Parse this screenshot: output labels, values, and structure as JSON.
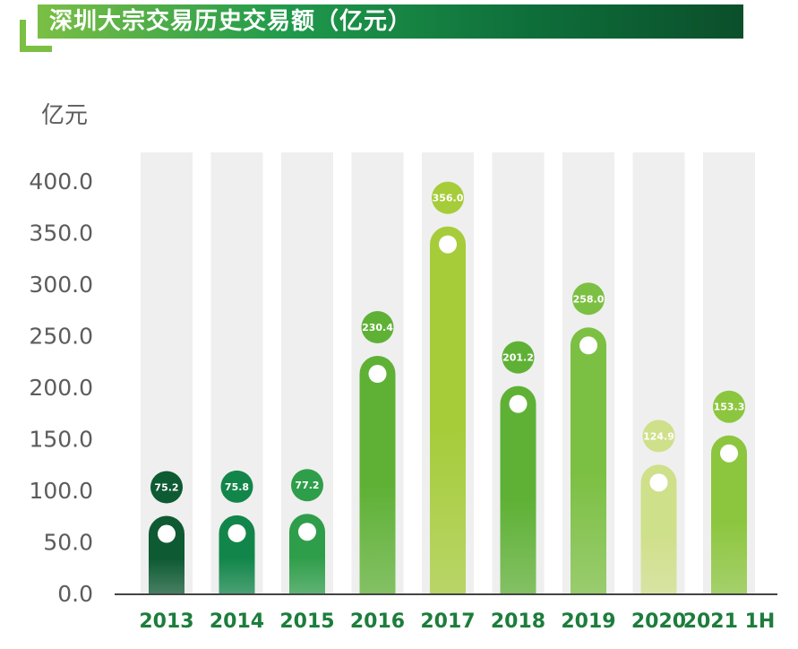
{
  "colors": {
    "title_gradient": [
      "#7bbf45",
      "#1f9a4b",
      "#0e6e3a",
      "#0b4f2b"
    ],
    "accent": "#7cc043",
    "axis_label": "#5c5c5c",
    "x_label": "#1d7d3c",
    "track": "#efefef",
    "bar_colors": [
      "#0e5a33",
      "#12864a",
      "#2f9e4a",
      "#5fb136",
      "#a6cc3a",
      "#5fb136",
      "#7cc043",
      "#cfe08a",
      "#8cc63f"
    ]
  },
  "chart_data": {
    "type": "bar",
    "title": "深圳大宗交易历史交易额（亿元）",
    "ylabel": "亿元",
    "xlabel": "",
    "categories": [
      "2013",
      "2014",
      "2015",
      "2016",
      "2017",
      "2018",
      "2019",
      "2020",
      "2021 1H"
    ],
    "values": [
      75.2,
      75.8,
      77.2,
      230.4,
      356.0,
      201.2,
      258.0,
      124.9,
      153.3
    ],
    "value_labels": [
      "75.2",
      "75.8",
      "77.2",
      "230.4",
      "356.0",
      "201.2",
      "258.0",
      "124.9",
      "153.3"
    ],
    "ylim": [
      0,
      400
    ],
    "yticks": [
      0,
      50,
      100,
      150,
      200,
      250,
      300,
      350,
      400
    ],
    "ytick_labels": [
      "0.0",
      "50.0",
      "100.0",
      "150.0",
      "200.0",
      "250.0",
      "300.0",
      "350.0",
      "400.0"
    ],
    "grid": false,
    "legend": "none"
  }
}
